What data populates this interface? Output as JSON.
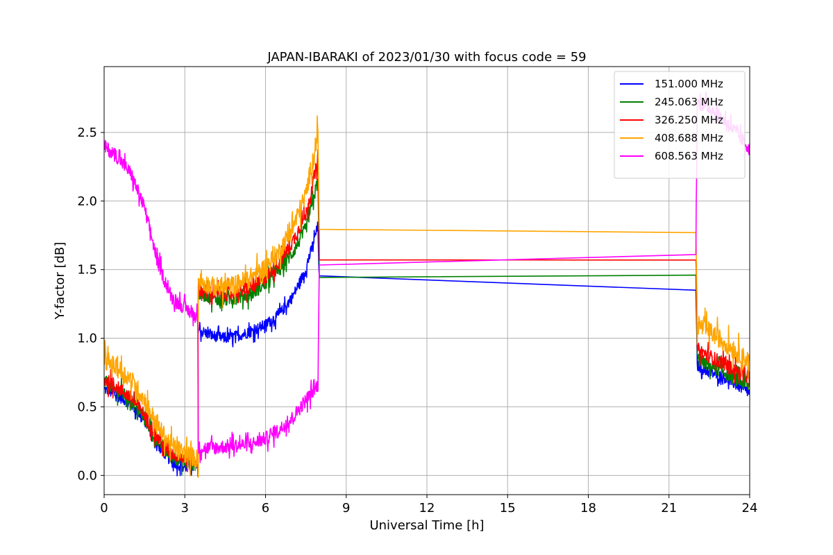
{
  "chart_data": {
    "type": "line",
    "title": "JAPAN-IBARAKI of 2023/01/30 with focus code = 59",
    "xlabel": "Universal Time [h]",
    "ylabel": "Y-factor [dB]",
    "xlim": [
      0,
      24
    ],
    "ylim": [
      -0.14,
      2.98
    ],
    "x_ticks": [
      0,
      3,
      6,
      9,
      12,
      15,
      18,
      21,
      24
    ],
    "y_ticks": [
      0.0,
      0.5,
      1.0,
      1.5,
      2.0,
      2.5
    ],
    "x_tick_labels": [
      "0",
      "3",
      "6",
      "9",
      "12",
      "15",
      "18",
      "21",
      "24"
    ],
    "y_tick_labels": [
      "0.0",
      "0.5",
      "1.0",
      "1.5",
      "2.0",
      "2.5"
    ],
    "grid": true,
    "legend_position": "top-right",
    "series": [
      {
        "name": "151.000 MHz",
        "color": "#0000ff",
        "noise": 0.04,
        "points": [
          [
            0,
            0.63
          ],
          [
            0.5,
            0.58
          ],
          [
            1,
            0.52
          ],
          [
            1.5,
            0.4
          ],
          [
            2,
            0.22
          ],
          [
            2.5,
            0.1
          ],
          [
            3,
            0.06
          ],
          [
            3.5,
            0.06
          ],
          [
            3.5,
            1.06
          ],
          [
            4,
            1.02
          ],
          [
            4.5,
            1.0
          ],
          [
            5,
            1.02
          ],
          [
            5.5,
            1.05
          ],
          [
            6,
            1.1
          ],
          [
            6.5,
            1.17
          ],
          [
            7,
            1.3
          ],
          [
            7.5,
            1.5
          ],
          [
            7.95,
            1.82
          ],
          [
            8,
            1.38
          ],
          [
            22,
            1.35
          ],
          [
            22.05,
            0.8
          ],
          [
            22.5,
            0.75
          ],
          [
            23,
            0.72
          ],
          [
            23.5,
            0.66
          ],
          [
            24,
            0.6
          ]
        ]
      },
      {
        "name": "245.063 MHz",
        "color": "#008000",
        "noise": 0.05,
        "points": [
          [
            0,
            0.68
          ],
          [
            0.5,
            0.62
          ],
          [
            1,
            0.55
          ],
          [
            1.5,
            0.42
          ],
          [
            2,
            0.25
          ],
          [
            2.5,
            0.14
          ],
          [
            3,
            0.1
          ],
          [
            3.5,
            0.08
          ],
          [
            3.5,
            1.33
          ],
          [
            4,
            1.3
          ],
          [
            4.5,
            1.28
          ],
          [
            5,
            1.3
          ],
          [
            5.5,
            1.33
          ],
          [
            6,
            1.4
          ],
          [
            6.5,
            1.5
          ],
          [
            7,
            1.62
          ],
          [
            7.5,
            1.8
          ],
          [
            7.95,
            2.15
          ],
          [
            8,
            1.49
          ],
          [
            22,
            1.46
          ],
          [
            22.05,
            0.85
          ],
          [
            22.5,
            0.8
          ],
          [
            23,
            0.76
          ],
          [
            23.5,
            0.7
          ],
          [
            24,
            0.65
          ]
        ]
      },
      {
        "name": "326.250 MHz",
        "color": "#ff0000",
        "noise": 0.05,
        "points": [
          [
            0,
            0.7
          ],
          [
            0.5,
            0.64
          ],
          [
            1,
            0.57
          ],
          [
            1.5,
            0.44
          ],
          [
            2,
            0.27
          ],
          [
            2.5,
            0.16
          ],
          [
            3,
            0.12
          ],
          [
            3.5,
            0.1
          ],
          [
            3.5,
            1.36
          ],
          [
            4,
            1.33
          ],
          [
            4.5,
            1.32
          ],
          [
            5,
            1.34
          ],
          [
            5.5,
            1.37
          ],
          [
            6,
            1.44
          ],
          [
            6.5,
            1.55
          ],
          [
            7,
            1.7
          ],
          [
            7.5,
            1.9
          ],
          [
            7.95,
            2.3
          ],
          [
            8,
            1.62
          ],
          [
            22,
            1.57
          ],
          [
            22.05,
            0.92
          ],
          [
            22.5,
            0.87
          ],
          [
            23,
            0.82
          ],
          [
            23.5,
            0.76
          ],
          [
            24,
            0.72
          ]
        ]
      },
      {
        "name": "408.688 MHz",
        "color": "#ffa500",
        "noise": 0.07,
        "points": [
          [
            0,
            0.85
          ],
          [
            0.5,
            0.78
          ],
          [
            1,
            0.7
          ],
          [
            1.5,
            0.55
          ],
          [
            2,
            0.35
          ],
          [
            2.5,
            0.22
          ],
          [
            3,
            0.16
          ],
          [
            3.5,
            0.12
          ],
          [
            3.5,
            1.42
          ],
          [
            4,
            1.38
          ],
          [
            4.5,
            1.37
          ],
          [
            5,
            1.4
          ],
          [
            5.5,
            1.45
          ],
          [
            6,
            1.52
          ],
          [
            6.5,
            1.63
          ],
          [
            7,
            1.8
          ],
          [
            7.5,
            2.05
          ],
          [
            7.95,
            2.5
          ],
          [
            8,
            1.8
          ],
          [
            22,
            1.77
          ],
          [
            22.05,
            1.1
          ],
          [
            22.5,
            1.05
          ],
          [
            23,
            0.98
          ],
          [
            23.5,
            0.9
          ],
          [
            24,
            0.83
          ]
        ]
      },
      {
        "name": "608.563 MHz",
        "color": "#ff00ff",
        "noise": 0.05,
        "points": [
          [
            0,
            2.4
          ],
          [
            0.5,
            2.32
          ],
          [
            1,
            2.2
          ],
          [
            1.5,
            1.95
          ],
          [
            2,
            1.55
          ],
          [
            2.5,
            1.3
          ],
          [
            3,
            1.22
          ],
          [
            3.48,
            1.15
          ],
          [
            3.5,
            0.2
          ],
          [
            4,
            0.2
          ],
          [
            4.5,
            0.21
          ],
          [
            5,
            0.22
          ],
          [
            5.5,
            0.23
          ],
          [
            6,
            0.27
          ],
          [
            6.5,
            0.33
          ],
          [
            7,
            0.42
          ],
          [
            7.5,
            0.55
          ],
          [
            7.95,
            0.66
          ],
          [
            8,
            1.55
          ],
          [
            22,
            1.61
          ],
          [
            22.05,
            2.72
          ],
          [
            22.5,
            2.68
          ],
          [
            23,
            2.6
          ],
          [
            23.5,
            2.5
          ],
          [
            24,
            2.38
          ]
        ]
      }
    ]
  }
}
